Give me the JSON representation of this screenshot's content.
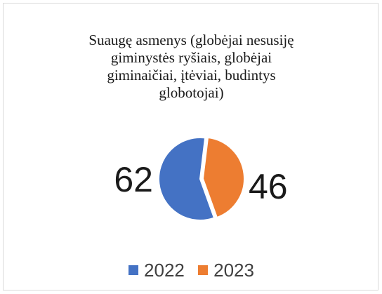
{
  "chart_data": {
    "type": "pie",
    "title_lines": [
      "Suaugę asmenys (globėjai nesusiję",
      "giminystės ryšiais, globėjai",
      "giminaičiai, įtėviai, budintys",
      "globotojai)"
    ],
    "categories": [
      "2022",
      "2023"
    ],
    "values": [
      62,
      46
    ],
    "colors": [
      "#4472C4",
      "#ED7D31"
    ],
    "legend_position": "bottom"
  }
}
